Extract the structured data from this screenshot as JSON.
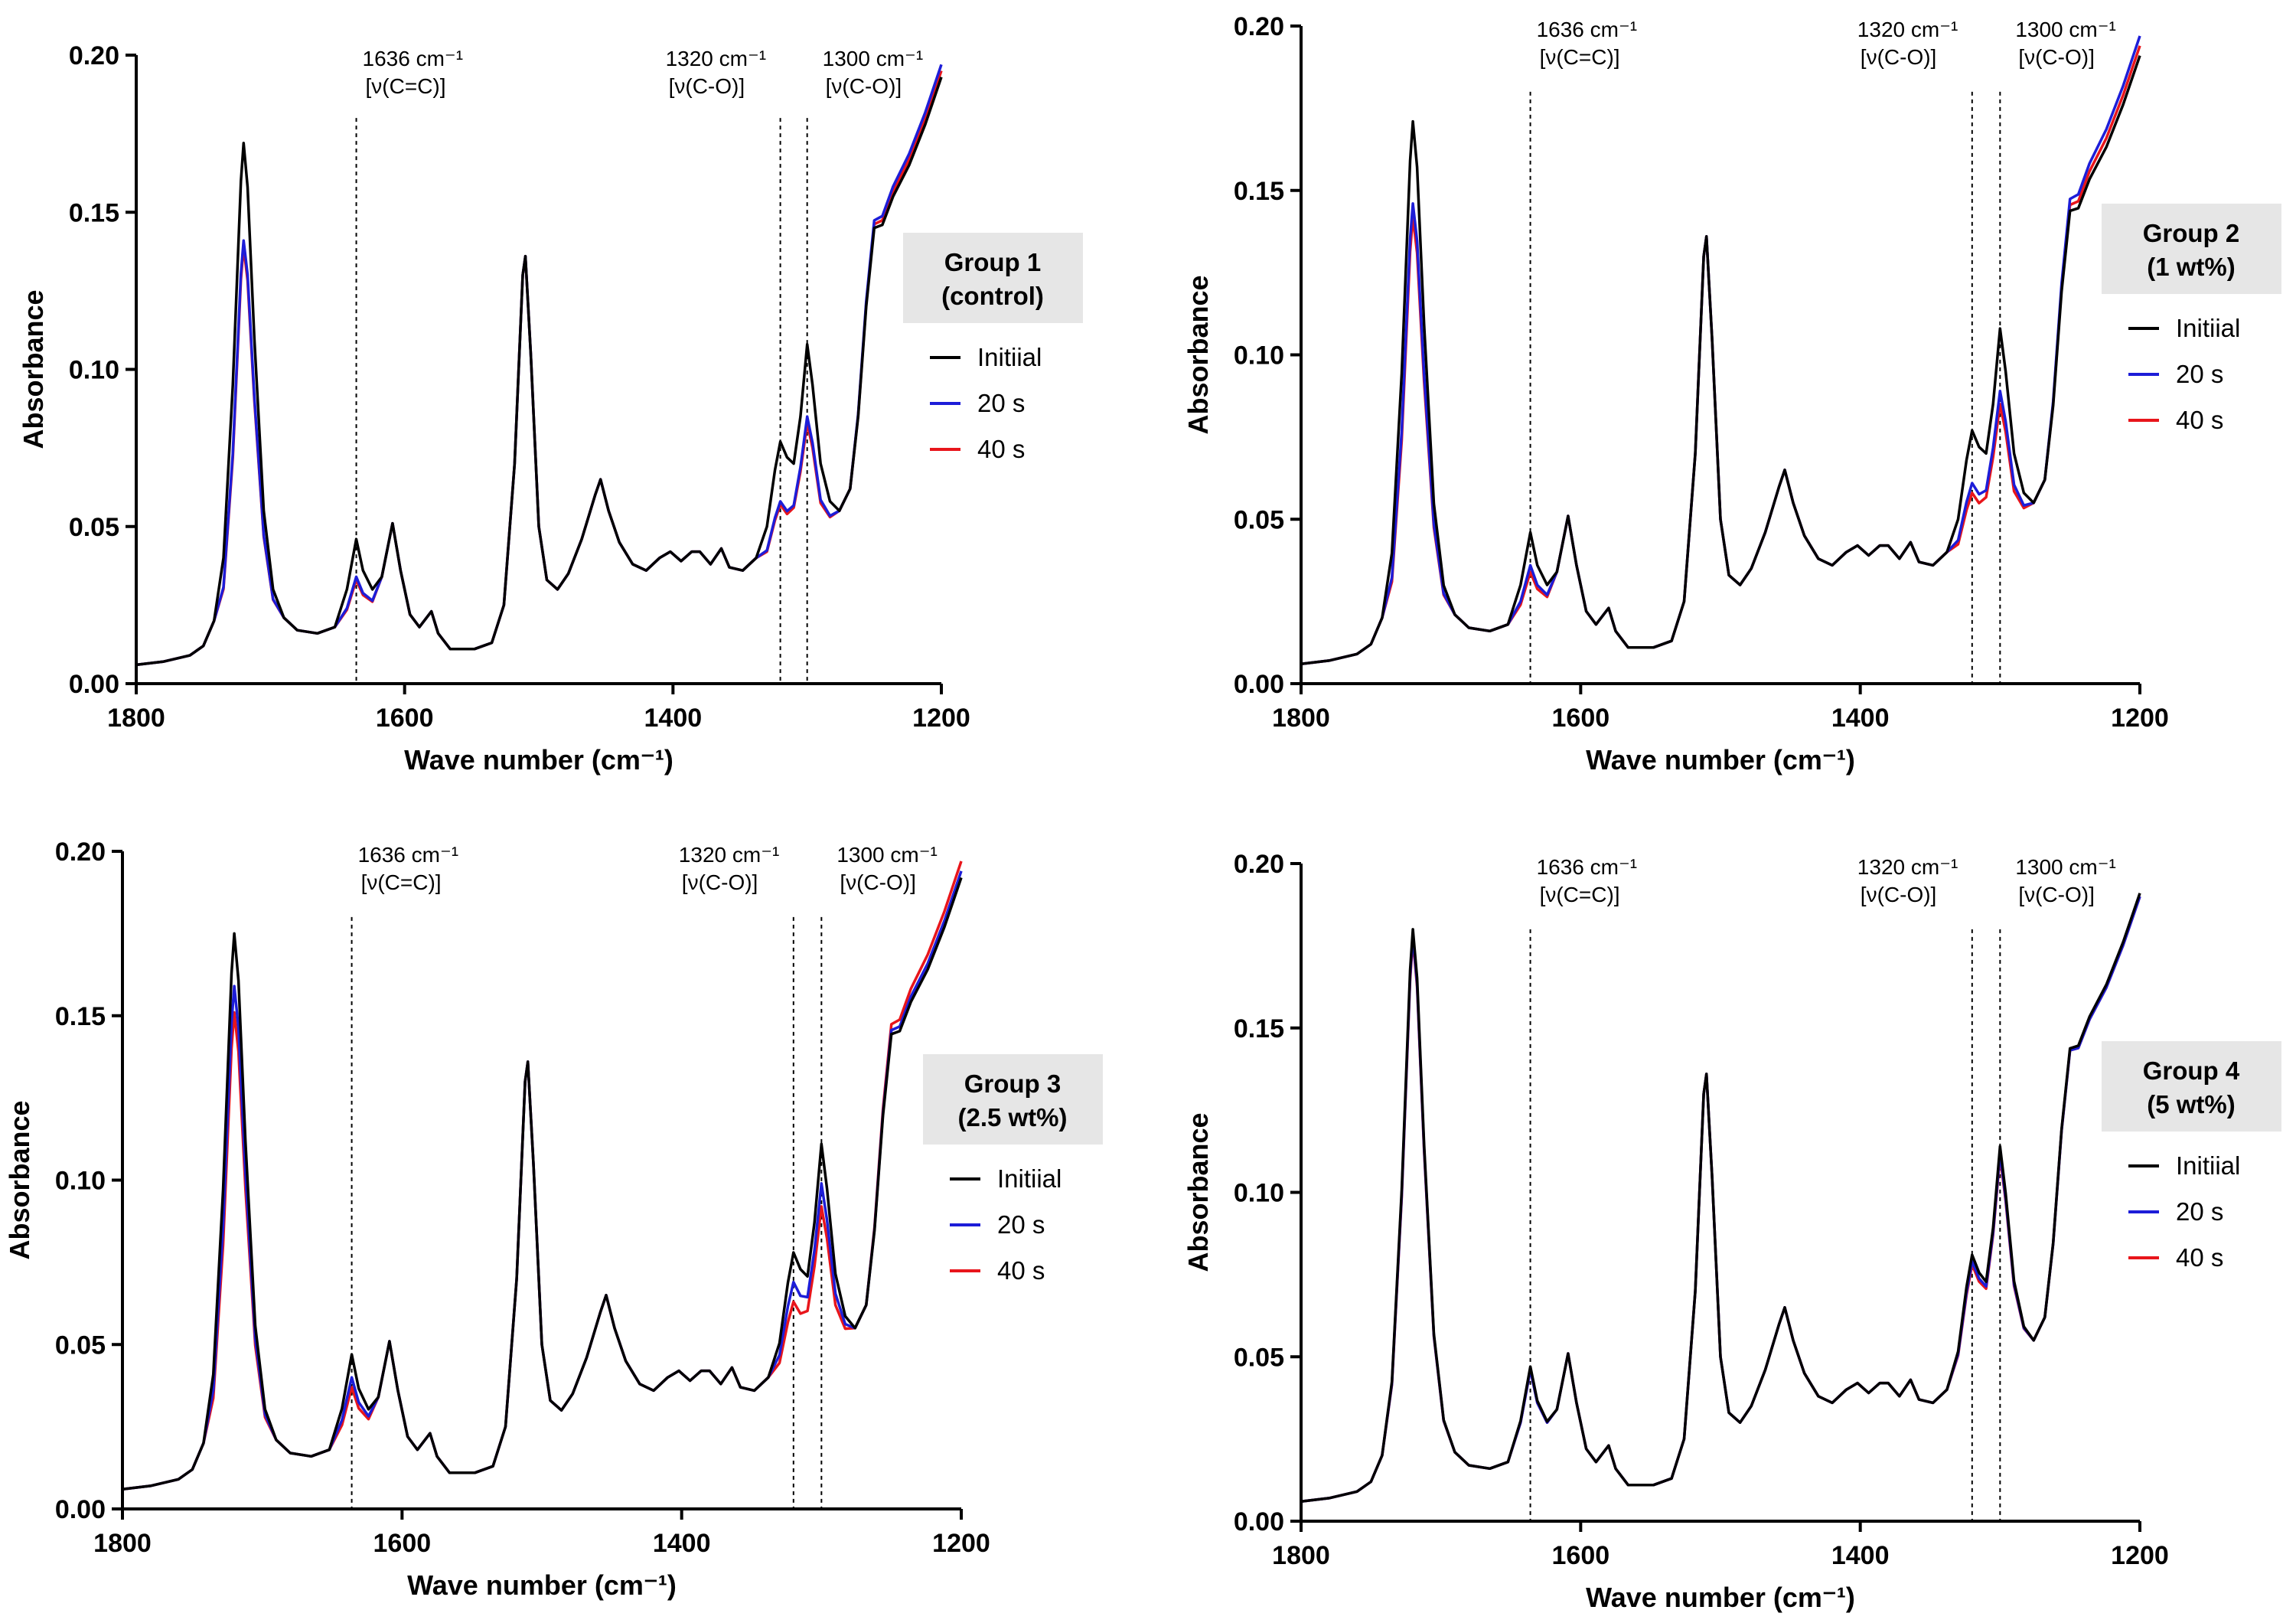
{
  "figure": {
    "accent_colors": {
      "initial": "#000000",
      "s20": "#1d1dd8",
      "s40": "#e8151b"
    }
  },
  "chart_data": [
    {
      "type": "line",
      "group_label": [
        "Group 1",
        "(control)"
      ],
      "xlabel": "Wave number (cm⁻¹)",
      "ylabel": "Absorbance",
      "xlim": [
        1800,
        1200
      ],
      "ylim": [
        0,
        0.2
      ],
      "x_ticks": [
        "1800",
        "1600",
        "1400",
        "1200"
      ],
      "y_ticks": [
        "0.00",
        "0.05",
        "0.10",
        "0.15",
        "0.20"
      ],
      "legend": [
        "Initiial",
        "20 s",
        "40 s"
      ],
      "annotations": [
        {
          "x": 1636,
          "label_top": "1636 cm⁻¹",
          "label_bottom": "[ν(C=C)]"
        },
        {
          "x": 1320,
          "label_top": "1320 cm⁻¹",
          "label_bottom": "[ν(C-O)]"
        },
        {
          "x": 1300,
          "label_top": "1300 cm⁻¹",
          "label_bottom": "[ν(C-O)]"
        }
      ],
      "series": [
        {
          "name": "Initiial",
          "values": {
            "p1720": 0.172,
            "p1636": 0.046,
            "p1320": 0.077,
            "p1300": 0.108,
            "end": 0.193,
            "base": 0.0
          }
        },
        {
          "name": "20 s",
          "values": {
            "p1720": 0.141,
            "p1636": 0.034,
            "p1320": 0.058,
            "p1300": 0.085,
            "end": 0.197,
            "base": 0.0
          }
        },
        {
          "name": "40 s",
          "values": {
            "p1720": 0.139,
            "p1636": 0.033,
            "p1320": 0.057,
            "p1300": 0.083,
            "end": 0.195,
            "base": 0.0
          }
        }
      ]
    },
    {
      "type": "line",
      "group_label": [
        "Group 2",
        "(1 wt%)"
      ],
      "xlabel": "Wave number (cm⁻¹)",
      "ylabel": "Absorbance",
      "xlim": [
        1800,
        1200
      ],
      "ylim": [
        0,
        0.2
      ],
      "x_ticks": [
        "1800",
        "1600",
        "1400",
        "1200"
      ],
      "y_ticks": [
        "0.00",
        "0.05",
        "0.10",
        "0.15",
        "0.20"
      ],
      "legend": [
        "Initiial",
        "20 s",
        "40 s"
      ],
      "annotations": [
        {
          "x": 1636,
          "label_top": "1636 cm⁻¹",
          "label_bottom": "[ν(C=C)]"
        },
        {
          "x": 1320,
          "label_top": "1320 cm⁻¹",
          "label_bottom": "[ν(C-O)]"
        },
        {
          "x": 1300,
          "label_top": "1300 cm⁻¹",
          "label_bottom": "[ν(C-O)]"
        }
      ],
      "series": [
        {
          "name": "Initiial",
          "values": {
            "p1720": 0.171,
            "p1636": 0.046,
            "p1320": 0.077,
            "p1300": 0.108,
            "end": 0.191,
            "base": 0.0
          }
        },
        {
          "name": "20 s",
          "values": {
            "p1720": 0.146,
            "p1636": 0.036,
            "p1320": 0.061,
            "p1300": 0.089,
            "end": 0.197,
            "base": 0.0
          }
        },
        {
          "name": "40 s",
          "values": {
            "p1720": 0.142,
            "p1636": 0.034,
            "p1320": 0.058,
            "p1300": 0.085,
            "end": 0.194,
            "base": 0.0
          }
        }
      ]
    },
    {
      "type": "line",
      "group_label": [
        "Group 3",
        "(2.5 wt%)"
      ],
      "xlabel": "Wave number (cm⁻¹)",
      "ylabel": "Absorbance",
      "xlim": [
        1800,
        1200
      ],
      "ylim": [
        0,
        0.2
      ],
      "x_ticks": [
        "1800",
        "1600",
        "1400",
        "1200"
      ],
      "y_ticks": [
        "0.00",
        "0.05",
        "0.10",
        "0.15",
        "0.20"
      ],
      "legend": [
        "Initiial",
        "20 s",
        "40 s"
      ],
      "annotations": [
        {
          "x": 1636,
          "label_top": "1636 cm⁻¹",
          "label_bottom": "[ν(C=C)]"
        },
        {
          "x": 1320,
          "label_top": "1320 cm⁻¹",
          "label_bottom": "[ν(C-O)]"
        },
        {
          "x": 1300,
          "label_top": "1300 cm⁻¹",
          "label_bottom": "[ν(C-O)]"
        }
      ],
      "series": [
        {
          "name": "Initiial",
          "values": {
            "p1720": 0.175,
            "p1636": 0.047,
            "p1320": 0.078,
            "p1300": 0.111,
            "end": 0.192,
            "base": 0.0
          }
        },
        {
          "name": "20 s",
          "values": {
            "p1720": 0.159,
            "p1636": 0.04,
            "p1320": 0.069,
            "p1300": 0.099,
            "end": 0.194,
            "base": 0.0
          }
        },
        {
          "name": "40 s",
          "values": {
            "p1720": 0.151,
            "p1636": 0.037,
            "p1320": 0.063,
            "p1300": 0.092,
            "end": 0.197,
            "base": 0.0
          }
        }
      ]
    },
    {
      "type": "line",
      "group_label": [
        "Group 4",
        "(5 wt%)"
      ],
      "xlabel": "Wave number (cm⁻¹)",
      "ylabel": "Absorbance",
      "xlim": [
        1800,
        1200
      ],
      "ylim": [
        0,
        0.2
      ],
      "x_ticks": [
        "1800",
        "1600",
        "1400",
        "1200"
      ],
      "y_ticks": [
        "0.00",
        "0.05",
        "0.10",
        "0.15",
        "0.20"
      ],
      "legend": [
        "Initiial",
        "20 s",
        "40 s"
      ],
      "annotations": [
        {
          "x": 1636,
          "label_top": "1636 cm⁻¹",
          "label_bottom": "[ν(C=C)]"
        },
        {
          "x": 1320,
          "label_top": "1320 cm⁻¹",
          "label_bottom": "[ν(C-O)]"
        },
        {
          "x": 1300,
          "label_top": "1300 cm⁻¹",
          "label_bottom": "[ν(C-O)]"
        }
      ],
      "series": [
        {
          "name": "Initiial",
          "values": {
            "p1720": 0.18,
            "p1636": 0.047,
            "p1320": 0.081,
            "p1300": 0.114,
            "end": 0.191,
            "base": 0.0
          }
        },
        {
          "name": "20 s",
          "values": {
            "p1720": 0.178,
            "p1636": 0.046,
            "p1320": 0.079,
            "p1300": 0.112,
            "end": 0.19,
            "base": 0.0
          }
        },
        {
          "name": "40 s",
          "values": {
            "p1720": 0.177,
            "p1636": 0.046,
            "p1320": 0.078,
            "p1300": 0.111,
            "end": 0.19,
            "base": 0.0
          }
        }
      ]
    }
  ]
}
